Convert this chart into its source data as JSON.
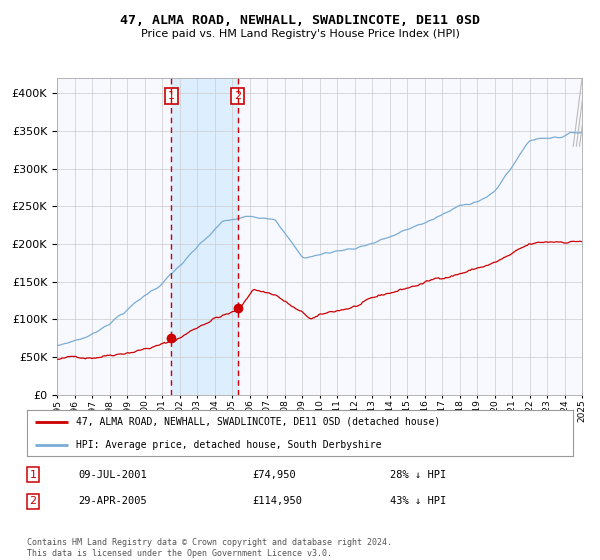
{
  "title": "47, ALMA ROAD, NEWHALL, SWADLINCOTE, DE11 0SD",
  "subtitle": "Price paid vs. HM Land Registry's House Price Index (HPI)",
  "legend_line1": "47, ALMA ROAD, NEWHALL, SWADLINCOTE, DE11 0SD (detached house)",
  "legend_line2": "HPI: Average price, detached house, South Derbyshire",
  "transaction1_date": "09-JUL-2001",
  "transaction1_price": 74950,
  "transaction1_label": "28% ↓ HPI",
  "transaction2_date": "29-APR-2005",
  "transaction2_price": 114950,
  "transaction2_label": "43% ↓ HPI",
  "footer": "Contains HM Land Registry data © Crown copyright and database right 2024.\nThis data is licensed under the Open Government Licence v3.0.",
  "hpi_color": "#7aadd4",
  "price_color": "#cc0000",
  "vline_color": "#cc0000",
  "shade_color": "#ddeeff",
  "background_color": "#f8f8ff",
  "grid_color": "#cccccc",
  "ylim": [
    0,
    420000
  ],
  "yticks": [
    0,
    50000,
    100000,
    150000,
    200000,
    250000,
    300000,
    350000,
    400000
  ],
  "transaction1_x": 2001.54,
  "transaction2_x": 2005.33
}
